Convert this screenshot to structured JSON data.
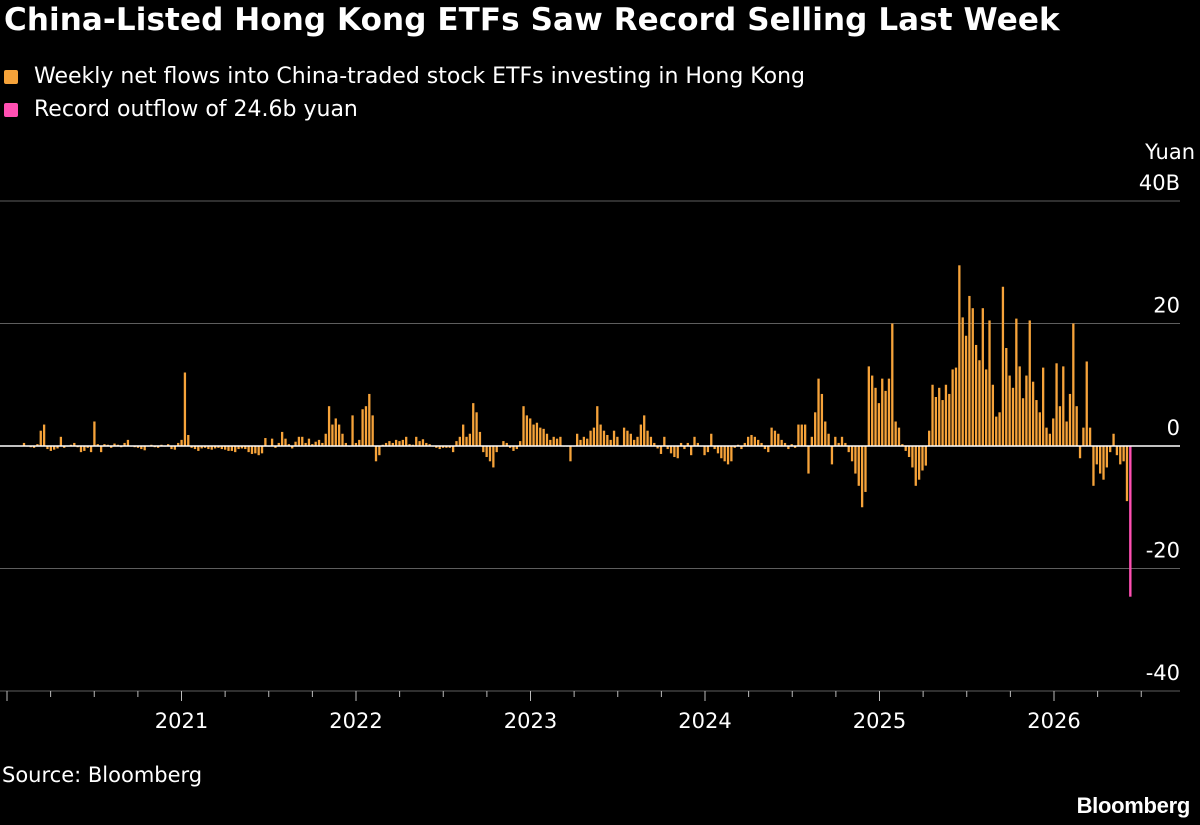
{
  "title": "China-Listed Hong Kong ETFs Saw Record Selling Last Week",
  "legend": [
    {
      "label": "Weekly net flows into China-traded stock ETFs investing in Hong Kong",
      "color": "#f6a33a"
    },
    {
      "label": "Record outflow of 24.6b yuan",
      "color": "#ff4fb2"
    }
  ],
  "source": "Source: Bloomberg",
  "brand": "Bloomberg",
  "colors": {
    "background": "#000000",
    "bar": "#f6a33a",
    "highlight": "#ff4fb2",
    "grid": "#5e5e5e",
    "text": "#ffffff"
  },
  "chart_data": {
    "type": "bar",
    "title": "China-Listed Hong Kong ETFs Saw Record Selling Last Week",
    "ylabel": "Yuan",
    "yunit_first_tick": "40B",
    "ylim": [
      -40,
      40
    ],
    "yticks": [
      {
        "value": 40,
        "label": "40B"
      },
      {
        "value": 20,
        "label": "20"
      },
      {
        "value": 0,
        "label": "0"
      },
      {
        "value": -20,
        "label": "-20"
      },
      {
        "value": -40,
        "label": "-40"
      }
    ],
    "xticks": [
      "2021",
      "2022",
      "2023",
      "2024",
      "2025",
      "2026"
    ],
    "x_start": "2020-02-07",
    "frequency": "weekly",
    "grid": true,
    "series": [
      {
        "name": "Weekly net flows into China-traded stock ETFs investing in Hong Kong",
        "values": [
          0.5,
          0,
          -0.2,
          -0.3,
          0.3,
          2.5,
          3.5,
          -0.5,
          -0.8,
          -0.6,
          -0.4,
          1.5,
          -0.3,
          0,
          0.2,
          0.5,
          -0.2,
          -1,
          -0.8,
          -0.3,
          -1,
          4,
          0.3,
          -1,
          0.3,
          0.2,
          -0.3,
          0.4,
          0.2,
          -0.2,
          0.5,
          1,
          0,
          -0.2,
          -0.3,
          -0.5,
          -0.7,
          0,
          0.2,
          -0.2,
          -0.3,
          0.2,
          0,
          0.3,
          -0.5,
          -0.6,
          0.5,
          1,
          12,
          1.8,
          -0.3,
          -0.5,
          -0.8,
          -0.4,
          -0.3,
          -0.5,
          -0.6,
          -0.4,
          -0.3,
          -0.5,
          -0.6,
          -0.8,
          -0.8,
          -1,
          -0.5,
          -0.4,
          -0.5,
          -1,
          -1.3,
          -1.2,
          -1.5,
          -1.2,
          1.3,
          0,
          1.2,
          -0.3,
          0.5,
          2.3,
          1.2,
          0.3,
          -0.4,
          0.7,
          1.5,
          1.5,
          0.5,
          1.2,
          0.3,
          0.7,
          1,
          0.5,
          2,
          6.5,
          3.5,
          4.5,
          3.5,
          2,
          0.5,
          0,
          5,
          0.5,
          1,
          6,
          6.5,
          8.5,
          5,
          -2.5,
          -1.5,
          0.2,
          0.5,
          0.8,
          0.5,
          1,
          0.8,
          1,
          1.5,
          0.3,
          0.2,
          1.5,
          0.8,
          1.1,
          0.5,
          0.3,
          0,
          -0.3,
          -0.5,
          -0.3,
          -0.3,
          -0.3,
          -1,
          0.8,
          1.5,
          3.5,
          1.5,
          2,
          7,
          5.5,
          2.3,
          -1,
          -1.8,
          -2.5,
          -3.5,
          -1,
          0,
          0.8,
          0.5,
          -0.3,
          -0.8,
          -0.5,
          0.8,
          6.5,
          5,
          4.5,
          3.5,
          3.8,
          3,
          2.8,
          2,
          1,
          1.5,
          1.2,
          1.5,
          0,
          0,
          -2.5,
          0,
          2,
          1,
          1.5,
          1.2,
          2.5,
          3,
          6.5,
          3.5,
          2.5,
          1.8,
          1,
          2.5,
          1.5,
          0,
          3,
          2.5,
          2,
          1,
          1.5,
          3.5,
          5,
          2.5,
          1.5,
          0.5,
          -0.4,
          -1.3,
          1.5,
          -0.5,
          -1.2,
          -1.8,
          -2,
          0.5,
          -0.5,
          0.5,
          -1.5,
          1.5,
          0.5,
          0,
          -1.5,
          -1,
          2,
          -0.5,
          -1.2,
          -2,
          -2.5,
          -3,
          -2.5,
          -0.3,
          0.2,
          -0.5,
          0.5,
          1.5,
          1.8,
          1.5,
          1,
          0.5,
          -0.5,
          -1,
          3,
          2.5,
          2,
          1,
          0.5,
          -0.5,
          0.3,
          -0.3,
          3.5,
          3.5,
          3.5,
          -4.5,
          1.5,
          5.5,
          11,
          8.5,
          4,
          2,
          -3,
          1.5,
          0.5,
          1.5,
          0.5,
          -1,
          -2.5,
          -4.5,
          -6.5,
          -10,
          -7.5,
          13,
          11.5,
          9.5,
          7,
          11,
          9,
          11,
          20,
          4,
          3,
          0.3,
          -0.8,
          -1.8,
          -3.5,
          -6.5,
          -5.5,
          -4,
          -3.2,
          2.5,
          10,
          8,
          9.5,
          7.5,
          10,
          8.5,
          12.5,
          12.8,
          29.5,
          21,
          18,
          24.5,
          22.5,
          16.5,
          14,
          22.5,
          12.5,
          20.5,
          10,
          4.8,
          5.5,
          26,
          16,
          11.5,
          9.5,
          20.8,
          13,
          7.8,
          11.5,
          20.5,
          10.5,
          7.5,
          5.5,
          12.8,
          3,
          2,
          4.5,
          13.5,
          6.5,
          13,
          4,
          8.5,
          20,
          6.5,
          -2,
          3,
          13.8,
          3,
          -6.5,
          -3,
          -4.5,
          -5.5,
          -3.5,
          -1,
          2,
          -1.5,
          -3,
          -2.5,
          -9
        ]
      },
      {
        "name": "Record outflow of 24.6b yuan",
        "point": {
          "x": "2026-05",
          "value": -24.6
        }
      }
    ]
  }
}
